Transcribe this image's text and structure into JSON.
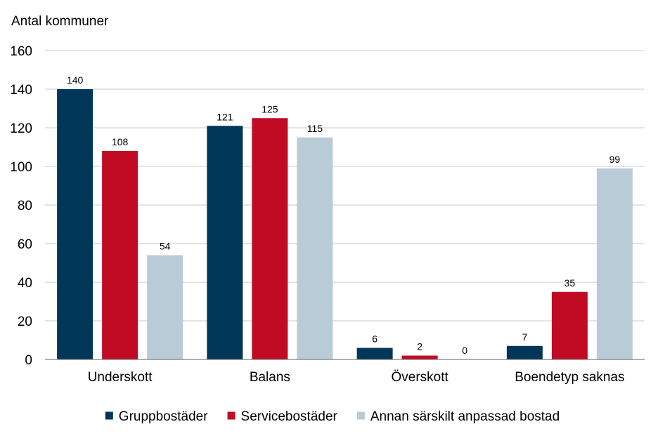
{
  "chart_data": {
    "type": "bar",
    "title": "",
    "ylabel": "Antal kommuner",
    "xlabel": "",
    "ylim": [
      0,
      160
    ],
    "yticks": [
      0,
      20,
      40,
      60,
      80,
      100,
      120,
      140,
      160
    ],
    "grid": true,
    "legend_position": "bottom",
    "categories": [
      "Underskott",
      "Balans",
      "Överskott",
      "Boendetyp saknas"
    ],
    "series": [
      {
        "name": "Gruppbostäder",
        "color": "#003658",
        "values": [
          140,
          121,
          6,
          7
        ]
      },
      {
        "name": "Servicebostäder",
        "color": "#c10b25",
        "values": [
          108,
          125,
          2,
          35
        ]
      },
      {
        "name": "Annan särskilt anpassad bostad",
        "color": "#b9cbd7",
        "values": [
          54,
          115,
          0,
          99
        ]
      }
    ]
  }
}
